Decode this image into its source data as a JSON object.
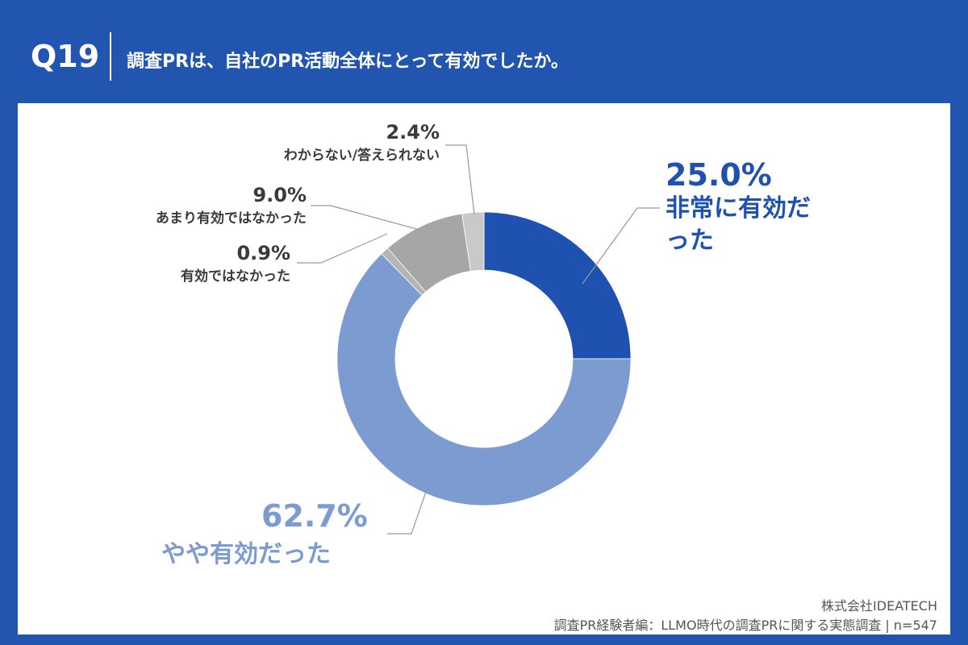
{
  "header": {
    "question_no": "Q19",
    "title": "調査PRは、自社のPR活動全体にとって有効でしたか。"
  },
  "chart_data": {
    "type": "pie",
    "donut": true,
    "title": "調査PRは、自社のPR活動全体にとって有効でしたか。",
    "categories": [
      "非常に有効だった",
      "やや有効だった",
      "有効ではなかった",
      "あまり有効ではなかった",
      "わからない/答えられない"
    ],
    "values": [
      25.0,
      62.7,
      0.9,
      9.0,
      2.4
    ],
    "value_labels": [
      "25.0%",
      "62.7%",
      "0.9%",
      "9.0%",
      "2.4%"
    ],
    "colors": [
      "#1f52b0",
      "#7b9bd1",
      "#b4b4b4",
      "#a6a6a6",
      "#c9c9c9"
    ],
    "order": "clockwise from top",
    "unit": "%"
  },
  "footer": {
    "company": "株式会社IDEATECH",
    "source": "調査PR経験者編：LLMO時代の調査PRに関する実態調査 | n=547"
  }
}
